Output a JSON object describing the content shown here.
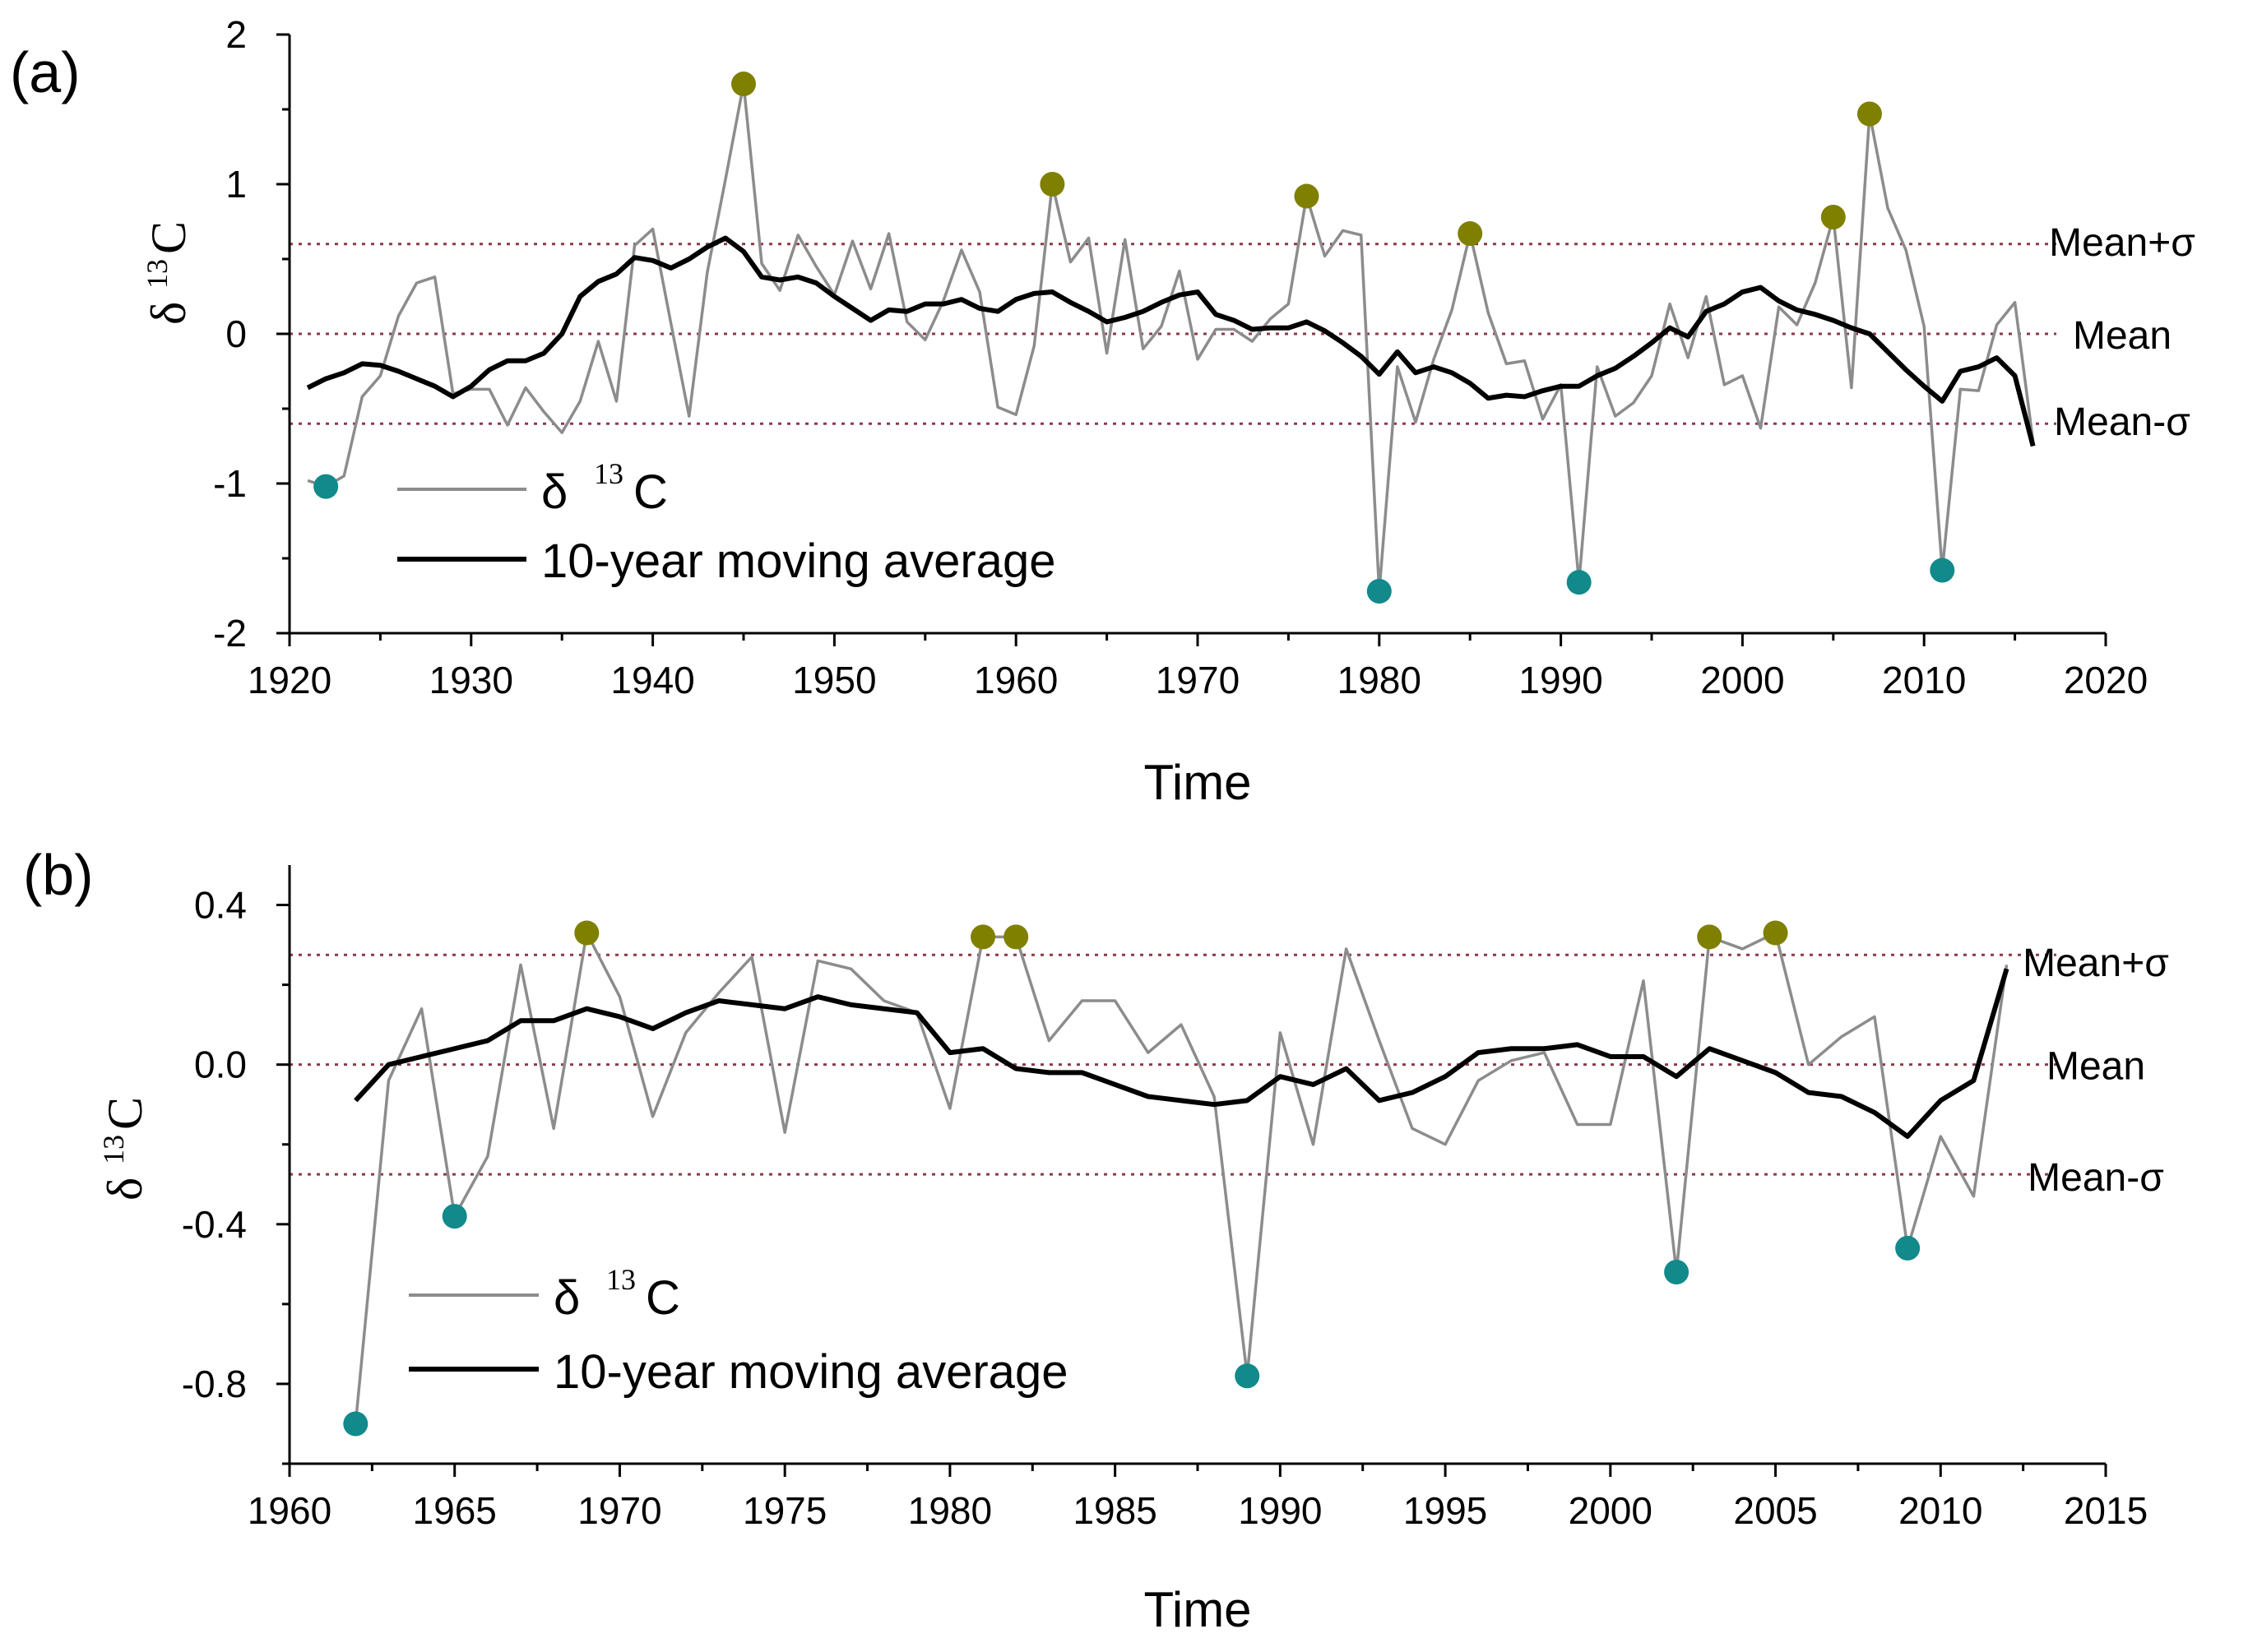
{
  "colors": {
    "raw_line": "#8c8c8c",
    "avg_line": "#000000",
    "ref_line": "#8b3a4a",
    "high_marker": "#7f7f00",
    "low_marker": "#12898a"
  },
  "chart_data": [
    {
      "type": "line",
      "panel_label": "(a)",
      "xlabel": "Time",
      "ylabel_main": "δ",
      "ylabel_sup": "13",
      "ylabel_sub": "C",
      "xlim": [
        1920,
        2020
      ],
      "ylim": [
        -2,
        2
      ],
      "x_ticks": [
        1920,
        1930,
        1940,
        1950,
        1960,
        1970,
        1980,
        1990,
        2000,
        2010,
        2020
      ],
      "y_ticks": [
        -2,
        -1,
        0,
        1,
        2
      ],
      "y_tick_labels": [
        "-2",
        "-1",
        "0",
        "1",
        "2"
      ],
      "reference_lines": [
        {
          "name": "Mean+σ",
          "value": 0.6
        },
        {
          "name": "Mean",
          "value": 0.0
        },
        {
          "name": "Mean-σ",
          "value": -0.6
        }
      ],
      "legend": {
        "position": "bottom-left",
        "entries": [
          "δ 13C",
          "10-year moving average"
        ],
        "raw_label_main": "δ ",
        "raw_label_sup": "13",
        "raw_label_sub": "C",
        "avg_label": "10-year moving average"
      },
      "series": [
        {
          "name": "δ 13C",
          "x": [
            1921,
            1922,
            1923,
            1924,
            1925,
            1926,
            1927,
            1928,
            1929,
            1930,
            1931,
            1932,
            1933,
            1934,
            1935,
            1936,
            1937,
            1938,
            1939,
            1940,
            1941,
            1942,
            1943,
            1944,
            1945,
            1946,
            1947,
            1948,
            1949,
            1950,
            1951,
            1952,
            1953,
            1954,
            1955,
            1956,
            1957,
            1958,
            1959,
            1960,
            1961,
            1962,
            1963,
            1964,
            1965,
            1966,
            1967,
            1968,
            1969,
            1970,
            1971,
            1972,
            1973,
            1974,
            1975,
            1976,
            1977,
            1978,
            1979,
            1980,
            1981,
            1982,
            1983,
            1984,
            1985,
            1986,
            1987,
            1988,
            1989,
            1990,
            1991,
            1992,
            1993,
            1994,
            1995,
            1996,
            1997,
            1998,
            1999,
            2000,
            2001,
            2002,
            2003,
            2004,
            2005,
            2006,
            2007,
            2008,
            2009,
            2010,
            2011,
            2012,
            2013,
            2014,
            2015,
            2016
          ],
          "values": [
            -0.98,
            -1.02,
            -0.95,
            -0.42,
            -0.28,
            0.12,
            0.34,
            0.38,
            -0.4,
            -0.37,
            -0.37,
            -0.61,
            -0.36,
            -0.52,
            -0.66,
            -0.45,
            -0.05,
            -0.45,
            0.59,
            0.7,
            0.07,
            -0.55,
            0.41,
            1.03,
            1.67,
            0.47,
            0.29,
            0.66,
            0.45,
            0.26,
            0.62,
            0.3,
            0.67,
            0.08,
            -0.04,
            0.22,
            0.56,
            0.28,
            -0.49,
            -0.54,
            -0.08,
            1.0,
            0.48,
            0.64,
            -0.13,
            0.63,
            -0.1,
            0.05,
            0.42,
            -0.17,
            0.03,
            0.03,
            -0.05,
            0.1,
            0.2,
            0.92,
            0.52,
            0.69,
            0.66,
            -1.72,
            -0.22,
            -0.59,
            -0.17,
            0.16,
            0.67,
            0.14,
            -0.2,
            -0.18,
            -0.57,
            -0.34,
            -1.66,
            -0.22,
            -0.55,
            -0.46,
            -0.28,
            0.2,
            -0.16,
            0.25,
            -0.34,
            -0.28,
            -0.63,
            0.18,
            0.06,
            0.34,
            0.78,
            -0.36,
            1.47,
            0.84,
            0.56,
            0.05,
            -1.58,
            -0.37,
            -0.38,
            0.06,
            0.21,
            -0.72
          ]
        },
        {
          "name": "10-year moving average",
          "x": [
            1921,
            1922,
            1923,
            1924,
            1925,
            1926,
            1927,
            1928,
            1929,
            1930,
            1931,
            1932,
            1933,
            1934,
            1935,
            1936,
            1937,
            1938,
            1939,
            1940,
            1941,
            1942,
            1943,
            1944,
            1945,
            1946,
            1947,
            1948,
            1949,
            1950,
            1951,
            1952,
            1953,
            1954,
            1955,
            1956,
            1957,
            1958,
            1959,
            1960,
            1961,
            1962,
            1963,
            1964,
            1965,
            1966,
            1967,
            1968,
            1969,
            1970,
            1971,
            1972,
            1973,
            1974,
            1975,
            1976,
            1977,
            1978,
            1979,
            1980,
            1981,
            1982,
            1983,
            1984,
            1985,
            1986,
            1987,
            1988,
            1989,
            1990,
            1991,
            1992,
            1993,
            1994,
            1995,
            1996,
            1997,
            1998,
            1999,
            2000,
            2001,
            2002,
            2003,
            2004,
            2005,
            2006,
            2007,
            2008,
            2009,
            2010,
            2011,
            2012,
            2013,
            2014,
            2015,
            2016
          ],
          "values": [
            -0.36,
            -0.3,
            -0.26,
            -0.2,
            -0.21,
            -0.25,
            -0.3,
            -0.35,
            -0.42,
            -0.35,
            -0.24,
            -0.18,
            -0.18,
            -0.13,
            0.0,
            0.25,
            0.35,
            0.4,
            0.51,
            0.49,
            0.44,
            0.5,
            0.58,
            0.64,
            0.55,
            0.38,
            0.36,
            0.38,
            0.34,
            0.25,
            0.17,
            0.09,
            0.16,
            0.15,
            0.2,
            0.2,
            0.23,
            0.17,
            0.15,
            0.23,
            0.27,
            0.28,
            0.21,
            0.15,
            0.08,
            0.11,
            0.15,
            0.21,
            0.26,
            0.28,
            0.13,
            0.09,
            0.03,
            0.04,
            0.04,
            0.08,
            0.02,
            -0.06,
            -0.15,
            -0.27,
            -0.12,
            -0.26,
            -0.22,
            -0.26,
            -0.33,
            -0.43,
            -0.41,
            -0.42,
            -0.38,
            -0.35,
            -0.35,
            -0.28,
            -0.23,
            -0.15,
            -0.06,
            0.04,
            -0.02,
            0.15,
            0.2,
            0.28,
            0.31,
            0.22,
            0.16,
            0.13,
            0.09,
            0.04,
            0.0,
            -0.12,
            -0.24,
            -0.35,
            -0.45,
            -0.25,
            -0.22,
            -0.16,
            -0.28,
            -0.75
          ]
        }
      ],
      "high_points": [
        [
          1945,
          1.67
        ],
        [
          1962,
          1.0
        ],
        [
          1976,
          0.92
        ],
        [
          1985,
          0.67
        ],
        [
          2005,
          0.78
        ],
        [
          2007,
          1.47
        ]
      ],
      "low_points": [
        [
          1922,
          -1.02
        ],
        [
          1980,
          -1.72
        ],
        [
          1991,
          -1.66
        ],
        [
          2011,
          -1.58
        ]
      ]
    },
    {
      "type": "line",
      "panel_label": "(b)",
      "xlabel": "Time",
      "ylabel_main": "δ",
      "ylabel_sup": "13",
      "ylabel_sub": "C",
      "xlim": [
        1960,
        2015
      ],
      "ylim": [
        -1.0,
        0.5
      ],
      "x_ticks": [
        1960,
        1965,
        1970,
        1975,
        1980,
        1985,
        1990,
        1995,
        2000,
        2005,
        2010,
        2015
      ],
      "y_ticks": [
        -0.8,
        -0.4,
        0.0,
        0.4
      ],
      "y_tick_labels": [
        "-0.8",
        "-0.4",
        "0.0",
        "0.4"
      ],
      "y_minor_ticks": [
        -1.0,
        -0.6,
        -0.2,
        0.2
      ],
      "reference_lines": [
        {
          "name": "Mean+σ",
          "value": 0.275
        },
        {
          "name": "Mean",
          "value": 0.0
        },
        {
          "name": "Mean-σ",
          "value": -0.275
        }
      ],
      "legend": {
        "position": "bottom-left",
        "entries": [
          "δ 13C",
          "10-year moving average"
        ],
        "raw_label_main": "δ ",
        "raw_label_sup": "13",
        "raw_label_sub": "C",
        "avg_label": "10-year moving average"
      },
      "series": [
        {
          "name": "δ 13C",
          "x": [
            1962,
            1963,
            1964,
            1965,
            1966,
            1967,
            1968,
            1969,
            1970,
            1971,
            1972,
            1973,
            1974,
            1975,
            1976,
            1977,
            1978,
            1979,
            1980,
            1981,
            1982,
            1983,
            1984,
            1985,
            1986,
            1987,
            1988,
            1989,
            1990,
            1991,
            1992,
            1993,
            1994,
            1995,
            1996,
            1997,
            1998,
            1999,
            2000,
            2001,
            2002,
            2003,
            2004,
            2005,
            2006,
            2007,
            2008,
            2009,
            2010,
            2011,
            2012
          ],
          "values": [
            -0.9,
            -0.04,
            0.14,
            -0.38,
            -0.23,
            0.25,
            -0.16,
            0.33,
            0.17,
            -0.13,
            0.08,
            0.18,
            0.27,
            -0.17,
            0.26,
            0.24,
            0.16,
            0.13,
            -0.11,
            0.32,
            0.32,
            0.06,
            0.16,
            0.16,
            0.03,
            0.1,
            -0.08,
            -0.78,
            0.08,
            -0.2,
            0.29,
            0.06,
            -0.16,
            -0.2,
            -0.04,
            0.01,
            0.03,
            -0.15,
            -0.15,
            0.21,
            -0.52,
            0.32,
            0.29,
            0.33,
            0.0,
            0.07,
            0.12,
            -0.46,
            -0.18,
            -0.33,
            0.25
          ]
        },
        {
          "name": "10-year moving average",
          "x": [
            1962,
            1963,
            1964,
            1965,
            1966,
            1967,
            1968,
            1969,
            1970,
            1971,
            1972,
            1973,
            1974,
            1975,
            1976,
            1977,
            1978,
            1979,
            1980,
            1981,
            1982,
            1983,
            1984,
            1985,
            1986,
            1987,
            1988,
            1989,
            1990,
            1991,
            1992,
            1993,
            1994,
            1995,
            1996,
            1997,
            1998,
            1999,
            2000,
            2001,
            2002,
            2003,
            2004,
            2005,
            2006,
            2007,
            2008,
            2009,
            2010,
            2011,
            2012
          ],
          "values": [
            -0.09,
            0.0,
            0.02,
            0.04,
            0.06,
            0.11,
            0.11,
            0.14,
            0.12,
            0.09,
            0.13,
            0.16,
            0.15,
            0.14,
            0.17,
            0.15,
            0.14,
            0.13,
            0.03,
            0.04,
            -0.01,
            -0.02,
            -0.02,
            -0.05,
            -0.08,
            -0.09,
            -0.1,
            -0.09,
            -0.03,
            -0.05,
            -0.01,
            -0.09,
            -0.07,
            -0.03,
            0.03,
            0.04,
            0.04,
            0.05,
            0.02,
            0.02,
            -0.03,
            0.04,
            0.01,
            -0.02,
            -0.07,
            -0.08,
            -0.12,
            -0.18,
            -0.09,
            -0.04,
            0.24
          ]
        }
      ],
      "high_points": [
        [
          1969,
          0.33
        ],
        [
          1981,
          0.32
        ],
        [
          1982,
          0.32
        ],
        [
          2003,
          0.32
        ],
        [
          2005,
          0.33
        ]
      ],
      "low_points": [
        [
          1962,
          -0.9
        ],
        [
          1965,
          -0.38
        ],
        [
          1989,
          -0.78
        ],
        [
          2002,
          -0.52
        ],
        [
          2009,
          -0.46
        ]
      ]
    }
  ]
}
